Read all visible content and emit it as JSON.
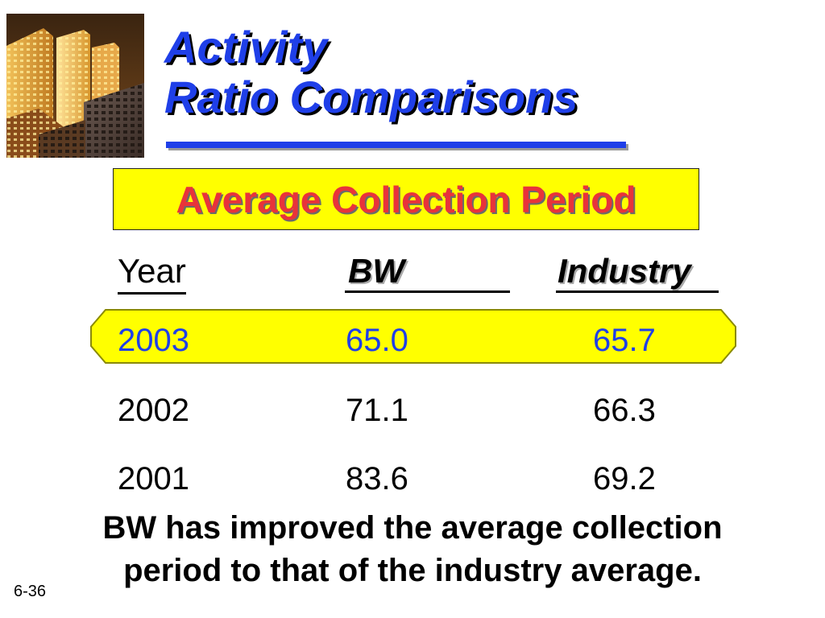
{
  "slide": {
    "title_line1": "Activity",
    "title_line2": "Ratio Comparisons",
    "subtitle": "Average Collection Period",
    "slide_number": "6-36"
  },
  "table": {
    "headers": {
      "year": "Year",
      "bw": "BW",
      "industry": "Industry"
    },
    "rows": [
      {
        "year": "2003",
        "bw": "65.0",
        "industry": "65.7",
        "highlighted": true
      },
      {
        "year": "2002",
        "bw": "71.1",
        "industry": "66.3",
        "highlighted": false
      },
      {
        "year": "2001",
        "bw": "83.6",
        "industry": "69.2",
        "highlighted": false
      }
    ]
  },
  "note": {
    "line1": "BW has improved the average collection",
    "line2": "period to that of the industry average."
  },
  "colors": {
    "title": "#1f3fe8",
    "subtitle_text": "#e8333a",
    "highlight": "#ffff00",
    "highlight_text": "#1f3fe8"
  },
  "images": {
    "photo": "city-skyscrapers-photo"
  }
}
